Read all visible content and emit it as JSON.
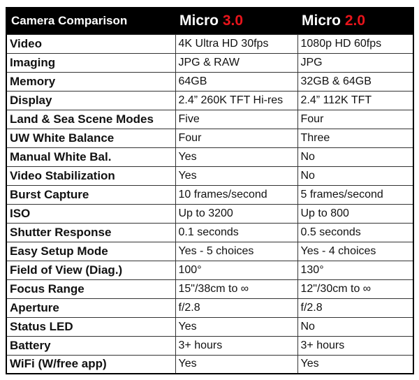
{
  "header": {
    "title": "Camera Comparison",
    "col1": {
      "name": "Micro",
      "version": "3.0"
    },
    "col2": {
      "name": "Micro",
      "version": "2.0"
    }
  },
  "colors": {
    "header_bg": "#000000",
    "version_accent": "#e8141b"
  },
  "rows": [
    {
      "feature": "Video",
      "micro3": "4K Ultra HD 30fps",
      "micro2": "1080p HD 60fps"
    },
    {
      "feature": "Imaging",
      "micro3": "JPG & RAW",
      "micro2": "JPG"
    },
    {
      "feature": "Memory",
      "micro3": "64GB",
      "micro2": "32GB & 64GB"
    },
    {
      "feature": "Display",
      "micro3": "2.4” 260K TFT Hi-res",
      "micro2": "2.4” 112K TFT"
    },
    {
      "feature": "Land & Sea Scene Modes",
      "micro3": "Five",
      "micro2": "Four"
    },
    {
      "feature": "UW White Balance",
      "micro3": "Four",
      "micro2": "Three"
    },
    {
      "feature": "Manual White Bal.",
      "micro3": "Yes",
      "micro2": "No"
    },
    {
      "feature": "Video Stabilization",
      "micro3": "Yes",
      "micro2": "No"
    },
    {
      "feature": "Burst Capture",
      "micro3": "10 frames/second",
      "micro2": "5 frames/second"
    },
    {
      "feature": "ISO",
      "micro3": "Up to 3200",
      "micro2": "Up to 800"
    },
    {
      "feature": "Shutter Response",
      "micro3": "0.1 seconds",
      "micro2": "0.5 seconds"
    },
    {
      "feature": "Easy Setup Mode",
      "micro3": "Yes - 5 choices",
      "micro2": "Yes - 4 choices"
    },
    {
      "feature": "Field of View (Diag.)",
      "micro3": "100°",
      "micro2": "130°"
    },
    {
      "feature": "Focus Range",
      "micro3": "15\"/38cm to ∞",
      "micro2": "12\"/30cm to ∞"
    },
    {
      "feature": "Aperture",
      "micro3": "f/2.8",
      "micro2": "f/2.8"
    },
    {
      "feature": "Status LED",
      "micro3": "Yes",
      "micro2": "No"
    },
    {
      "feature": "Battery",
      "micro3": "3+ hours",
      "micro2": "3+ hours"
    },
    {
      "feature": "WiFi (W/free app)",
      "micro3": "Yes",
      "micro2": "Yes"
    }
  ]
}
